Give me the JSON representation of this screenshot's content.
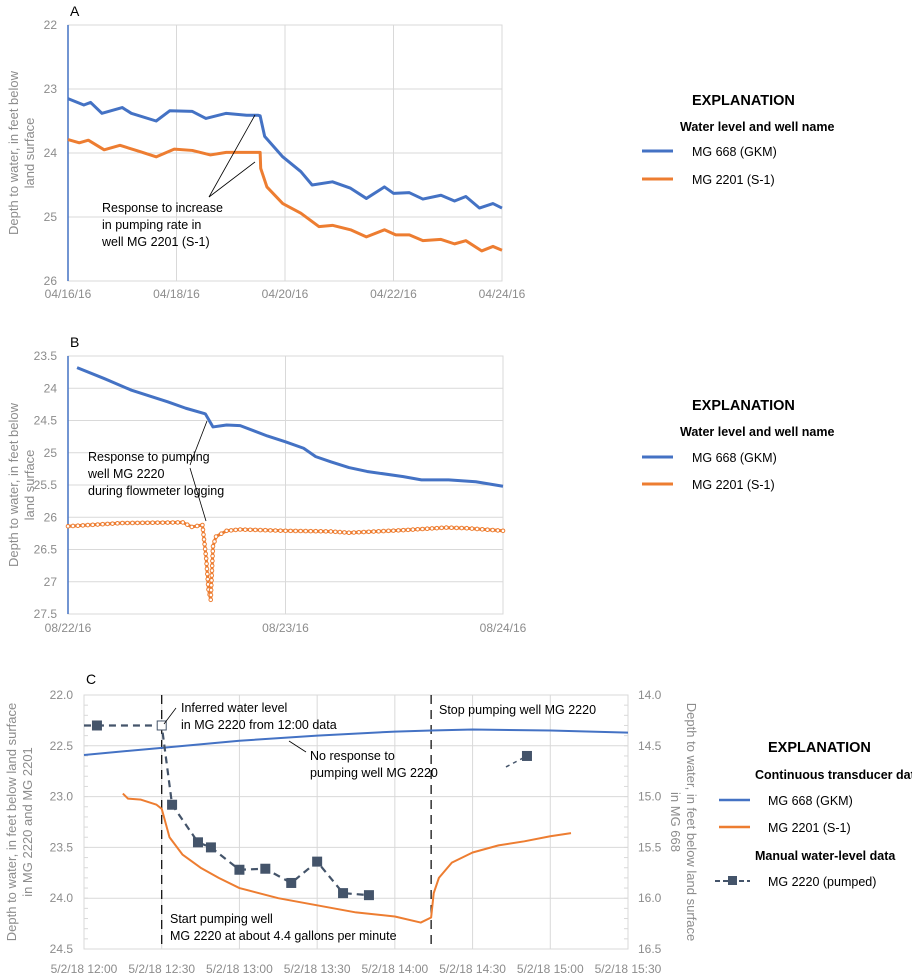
{
  "colors": {
    "mg668": "#4472C4",
    "mg2201": "#ED7D31",
    "mg2220": "#44546A"
  },
  "chart_data": [
    {
      "panel": "A",
      "type": "line",
      "ylabel": [
        "Depth to water, in feet below",
        "land surface"
      ],
      "ylim": [
        22,
        26
      ],
      "y_inverted": true,
      "y_ticks": [
        "22",
        "23",
        "24",
        "25",
        "26"
      ],
      "xlim": [
        "2016-04-16T00:00",
        "2016-04-24T00:00"
      ],
      "x_ticks": [
        [
          "2016-04-16T00:00",
          "04/16/16"
        ],
        [
          "2016-04-18T00:00",
          "04/18/16"
        ],
        [
          "2016-04-20T00:00",
          "04/20/16"
        ],
        [
          "2016-04-22T00:00",
          "04/22/16"
        ],
        [
          "2016-04-24T00:00",
          "04/24/16"
        ]
      ],
      "grid": true,
      "legend": {
        "title": "EXPLANATION",
        "subtitle": "Water level and well name",
        "placement": "right"
      },
      "annotation": [
        "Response to increase",
        "in pumping rate in",
        "well MG 2201 (S-1)"
      ],
      "series": [
        {
          "name": "MG 668 (GKM)",
          "color": "#4472C4",
          "points": [
            [
              "2016-04-16T00:00",
              23.15
            ],
            [
              "2016-04-16T07:00",
              23.25
            ],
            [
              "2016-04-16T10:00",
              23.21
            ],
            [
              "2016-04-16T15:00",
              23.38
            ],
            [
              "2016-04-17T00:00",
              23.29
            ],
            [
              "2016-04-17T04:00",
              23.38
            ],
            [
              "2016-04-17T15:00",
              23.5
            ],
            [
              "2016-04-17T21:00",
              23.34
            ],
            [
              "2016-04-18T07:00",
              23.35
            ],
            [
              "2016-04-18T13:00",
              23.46
            ],
            [
              "2016-04-18T22:00",
              23.38
            ],
            [
              "2016-04-19T07:00",
              23.41
            ],
            [
              "2016-04-19T12:00",
              23.41
            ],
            [
              "2016-04-19T13:00",
              23.42
            ],
            [
              "2016-04-19T15:00",
              23.74
            ],
            [
              "2016-04-19T23:00",
              24.06
            ],
            [
              "2016-04-20T07:00",
              24.29
            ],
            [
              "2016-04-20T12:00",
              24.5
            ],
            [
              "2016-04-20T21:00",
              24.45
            ],
            [
              "2016-04-21T05:00",
              24.55
            ],
            [
              "2016-04-21T12:00",
              24.71
            ],
            [
              "2016-04-21T20:00",
              24.53
            ],
            [
              "2016-04-22T00:00",
              24.63
            ],
            [
              "2016-04-22T07:00",
              24.62
            ],
            [
              "2016-04-22T13:00",
              24.72
            ],
            [
              "2016-04-22T21:00",
              24.66
            ],
            [
              "2016-04-23T03:00",
              24.75
            ],
            [
              "2016-04-23T08:00",
              24.68
            ],
            [
              "2016-04-23T14:00",
              24.86
            ],
            [
              "2016-04-23T20:00",
              24.79
            ],
            [
              "2016-04-24T00:00",
              24.86
            ]
          ]
        },
        {
          "name": "MG 2201 (S-1)",
          "color": "#ED7D31",
          "points": [
            [
              "2016-04-16T00:00",
              23.79
            ],
            [
              "2016-04-16T05:00",
              23.84
            ],
            [
              "2016-04-16T09:00",
              23.8
            ],
            [
              "2016-04-16T16:00",
              23.95
            ],
            [
              "2016-04-16T23:00",
              23.88
            ],
            [
              "2016-04-17T08:00",
              23.98
            ],
            [
              "2016-04-17T15:00",
              24.06
            ],
            [
              "2016-04-17T23:00",
              23.94
            ],
            [
              "2016-04-18T07:00",
              23.96
            ],
            [
              "2016-04-18T15:00",
              24.03
            ],
            [
              "2016-04-18T22:00",
              23.99
            ],
            [
              "2016-04-19T07:00",
              23.99
            ],
            [
              "2016-04-19T13:00",
              23.99
            ],
            [
              "2016-04-19T13:15",
              24.24
            ],
            [
              "2016-04-19T16:00",
              24.53
            ],
            [
              "2016-04-19T23:00",
              24.79
            ],
            [
              "2016-04-20T07:00",
              24.94
            ],
            [
              "2016-04-20T15:00",
              25.15
            ],
            [
              "2016-04-20T21:00",
              25.13
            ],
            [
              "2016-04-21T05:00",
              25.2
            ],
            [
              "2016-04-21T12:00",
              25.31
            ],
            [
              "2016-04-21T20:00",
              25.2
            ],
            [
              "2016-04-22T01:00",
              25.28
            ],
            [
              "2016-04-22T07:00",
              25.28
            ],
            [
              "2016-04-22T13:00",
              25.37
            ],
            [
              "2016-04-22T21:00",
              25.35
            ],
            [
              "2016-04-23T03:00",
              25.42
            ],
            [
              "2016-04-23T08:00",
              25.37
            ],
            [
              "2016-04-23T15:00",
              25.53
            ],
            [
              "2016-04-23T20:00",
              25.46
            ],
            [
              "2016-04-24T00:00",
              25.52
            ]
          ]
        }
      ]
    },
    {
      "panel": "B",
      "type": "line",
      "ylabel": [
        "Depth to water, in feet below",
        "land surface"
      ],
      "ylim": [
        23.5,
        27.5
      ],
      "y_inverted": true,
      "y_ticks": [
        "23.5",
        "24",
        "24.5",
        "25",
        "25.5",
        "26",
        "26.5",
        "27",
        "27.5"
      ],
      "xlim": [
        "2016-08-22T00:00",
        "2016-08-24T00:00"
      ],
      "x_ticks": [
        [
          "2016-08-22T00:00",
          "08/22/16"
        ],
        [
          "2016-08-23T00:00",
          "08/23/16"
        ],
        [
          "2016-08-24T00:00",
          "08/24/16"
        ]
      ],
      "grid": true,
      "legend": {
        "title": "EXPLANATION",
        "subtitle": "Water level and well name",
        "placement": "right"
      },
      "annotation": [
        "Response to pumping",
        "well MG 2220",
        "during flowmeter logging"
      ],
      "series": [
        {
          "name": "MG 668 (GKM)",
          "color": "#4472C4",
          "points": [
            [
              "2016-08-22T01:00",
              23.68
            ],
            [
              "2016-08-22T04:00",
              23.85
            ],
            [
              "2016-08-22T07:00",
              24.03
            ],
            [
              "2016-08-22T11:00",
              24.21
            ],
            [
              "2016-08-22T13:00",
              24.31
            ],
            [
              "2016-08-22T15:00",
              24.39
            ],
            [
              "2016-08-22T15:10",
              24.4
            ],
            [
              "2016-08-22T16:00",
              24.6
            ],
            [
              "2016-08-22T17:30",
              24.57
            ],
            [
              "2016-08-22T19:00",
              24.58
            ],
            [
              "2016-08-22T22:00",
              24.74
            ],
            [
              "2016-08-23T00:00",
              24.83
            ],
            [
              "2016-08-23T02:00",
              24.93
            ],
            [
              "2016-08-23T03:20",
              25.06
            ],
            [
              "2016-08-23T05:00",
              25.14
            ],
            [
              "2016-08-23T07:00",
              25.23
            ],
            [
              "2016-08-23T09:00",
              25.29
            ],
            [
              "2016-08-23T13:00",
              25.37
            ],
            [
              "2016-08-23T15:00",
              25.42
            ],
            [
              "2016-08-23T18:00",
              25.42
            ],
            [
              "2016-08-23T21:00",
              25.45
            ],
            [
              "2016-08-24T00:00",
              25.52
            ]
          ]
        },
        {
          "name": "MG 2201 (S-1)",
          "color": "#ED7D31",
          "markers": "circle",
          "points": [
            [
              "2016-08-22T00:00",
              26.14
            ],
            [
              "2016-08-22T06:00",
              26.09
            ],
            [
              "2016-08-22T12:40",
              26.08
            ],
            [
              "2016-08-22T13:40",
              26.15
            ],
            [
              "2016-08-22T14:50",
              26.12
            ],
            [
              "2016-08-22T15:15",
              26.64
            ],
            [
              "2016-08-22T15:30",
              27.12
            ],
            [
              "2016-08-22T15:45",
              27.28
            ],
            [
              "2016-08-22T16:00",
              26.45
            ],
            [
              "2016-08-22T16:20",
              26.3
            ],
            [
              "2016-08-22T17:30",
              26.21
            ],
            [
              "2016-08-22T19:00",
              26.19
            ],
            [
              "2016-08-23T00:00",
              26.21
            ],
            [
              "2016-08-23T05:00",
              26.22
            ],
            [
              "2016-08-23T07:00",
              26.24
            ],
            [
              "2016-08-23T13:00",
              26.2
            ],
            [
              "2016-08-23T17:45",
              26.16
            ],
            [
              "2016-08-23T20:00",
              26.17
            ],
            [
              "2016-08-24T00:00",
              26.21
            ]
          ]
        }
      ]
    },
    {
      "panel": "C",
      "type": "line",
      "ylabel": [
        "Depth to water, in feet below land surface",
        "in MG 2220 and MG 2201"
      ],
      "y2label": [
        "Depth to water, in feet below land surface",
        "in MG 668"
      ],
      "ylim": [
        22.0,
        24.5
      ],
      "y2lim": [
        14.0,
        16.5
      ],
      "y_inverted": true,
      "y_ticks": [
        "22.0",
        "22.5",
        "23.0",
        "23.5",
        "24.0",
        "24.5"
      ],
      "y2_ticks": [
        "14.0",
        "14.5",
        "15.0",
        "15.5",
        "16.0",
        "16.5"
      ],
      "xlim": [
        "2018-05-02T12:00",
        "2018-05-02T15:30"
      ],
      "x_ticks": [
        [
          "2018-05-02T12:00",
          "5/2/18 12:00"
        ],
        [
          "2018-05-02T12:30",
          "5/2/18 12:30"
        ],
        [
          "2018-05-02T13:00",
          "5/2/18 13:00"
        ],
        [
          "2018-05-02T13:30",
          "5/2/18 13:30"
        ],
        [
          "2018-05-02T14:00",
          "5/2/18 14:00"
        ],
        [
          "2018-05-02T14:30",
          "5/2/18 14:30"
        ],
        [
          "2018-05-02T15:00",
          "5/2/18 15:00"
        ],
        [
          "2018-05-02T15:30",
          "5/2/18 15:30"
        ]
      ],
      "grid": true,
      "legend": {
        "title": "EXPLANATION",
        "continuous_title": "Continuous transducer data",
        "manual_title": "Manual water-level data",
        "placement": "right"
      },
      "events": [
        {
          "time": "2018-05-02T12:30",
          "label": [
            "Start pumping well",
            "MG 2220 at about 4.4 gallons per minute"
          ]
        },
        {
          "time": "2018-05-02T14:14",
          "label": [
            "Stop pumping well MG 2220"
          ]
        }
      ],
      "annotations": {
        "inferred": [
          "Inferred water level",
          "in MG 2220 from 12:00 data"
        ],
        "no_response": [
          "No response to",
          "pumping well MG 2220"
        ]
      },
      "series": [
        {
          "name": "MG 668 (GKM)",
          "axis": "right",
          "color": "#4472C4",
          "points": [
            [
              "2018-05-02T12:00",
              14.59
            ],
            [
              "2018-05-02T12:30",
              14.52
            ],
            [
              "2018-05-02T13:00",
              14.45
            ],
            [
              "2018-05-02T13:30",
              14.4
            ],
            [
              "2018-05-02T14:00",
              14.36
            ],
            [
              "2018-05-02T14:14",
              14.35
            ],
            [
              "2018-05-02T14:30",
              14.34
            ],
            [
              "2018-05-02T15:00",
              14.35
            ],
            [
              "2018-05-02T15:30",
              14.37
            ]
          ]
        },
        {
          "name": "MG 2201 (S-1)",
          "axis": "left",
          "color": "#ED7D31",
          "points": [
            [
              "2018-05-02T12:15",
              22.97
            ],
            [
              "2018-05-02T12:17",
              23.02
            ],
            [
              "2018-05-02T12:22",
              23.03
            ],
            [
              "2018-05-02T12:28",
              23.08
            ],
            [
              "2018-05-02T12:30",
              23.12
            ],
            [
              "2018-05-02T12:33",
              23.4
            ],
            [
              "2018-05-02T12:38",
              23.57
            ],
            [
              "2018-05-02T12:45",
              23.7
            ],
            [
              "2018-05-02T12:52",
              23.8
            ],
            [
              "2018-05-02T13:00",
              23.9
            ],
            [
              "2018-05-02T13:15",
              24.0
            ],
            [
              "2018-05-02T13:30",
              24.07
            ],
            [
              "2018-05-02T13:45",
              24.14
            ],
            [
              "2018-05-02T14:00",
              24.18
            ],
            [
              "2018-05-02T14:10",
              24.24
            ],
            [
              "2018-05-02T14:14",
              24.19
            ],
            [
              "2018-05-02T14:15",
              23.95
            ],
            [
              "2018-05-02T14:17",
              23.8
            ],
            [
              "2018-05-02T14:22",
              23.65
            ],
            [
              "2018-05-02T14:30",
              23.55
            ],
            [
              "2018-05-02T14:40",
              23.48
            ],
            [
              "2018-05-02T14:50",
              23.44
            ],
            [
              "2018-05-02T15:00",
              23.39
            ],
            [
              "2018-05-02T15:08",
              23.36
            ]
          ]
        },
        {
          "name": "MG 2220 (pumped)",
          "axis": "left",
          "color": "#44546A",
          "style": "dashed-square",
          "points": [
            [
              "2018-05-02T12:05",
              22.3
            ],
            [
              "2018-05-02T12:30",
              22.3,
              "inferred"
            ],
            [
              "2018-05-02T12:34",
              23.08
            ],
            [
              "2018-05-02T12:44",
              23.45
            ],
            [
              "2018-05-02T12:49",
              23.5
            ],
            [
              "2018-05-02T13:00",
              23.72
            ],
            [
              "2018-05-02T13:10",
              23.71
            ],
            [
              "2018-05-02T13:20",
              23.85
            ],
            [
              "2018-05-02T13:30",
              23.64
            ],
            [
              "2018-05-02T13:40",
              23.95
            ],
            [
              "2018-05-02T13:50",
              23.97
            ],
            [
              "2018-05-02T14:51",
              22.6
            ]
          ]
        }
      ]
    }
  ]
}
